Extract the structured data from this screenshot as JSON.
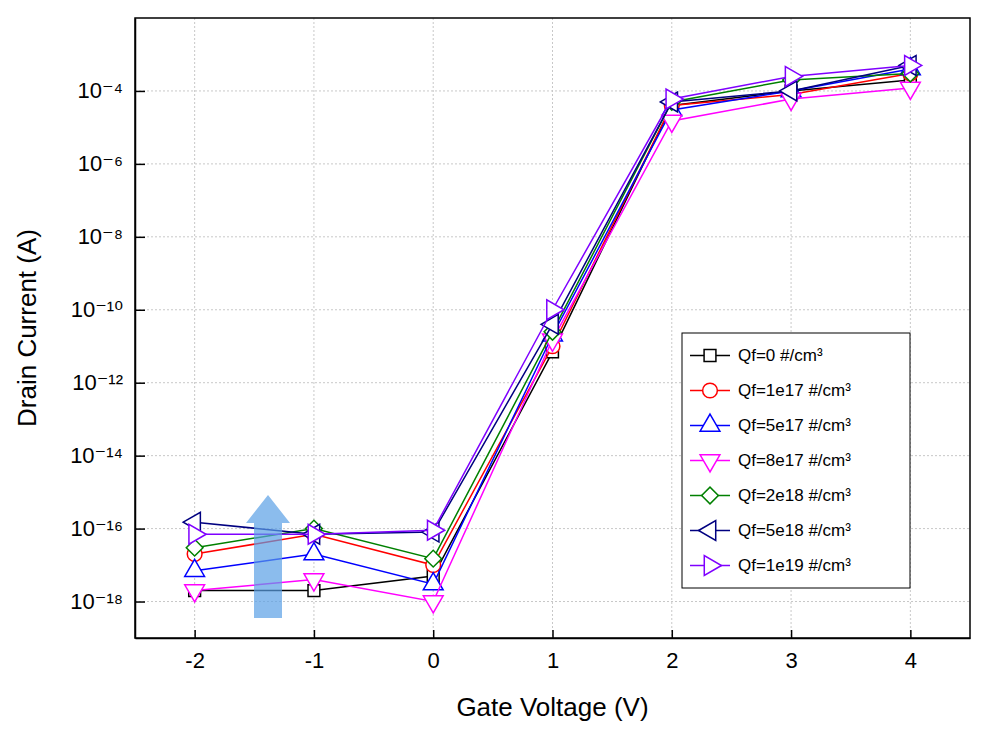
{
  "chart_data": {
    "type": "line",
    "x_label": "Gate Voltage (V)",
    "y_label": "Drain Current (A)",
    "log": "y",
    "grid": true,
    "legend": "lower right",
    "x": [
      -2,
      -1,
      0,
      1,
      2,
      3,
      4
    ],
    "xlim": [
      -2.5,
      4.5
    ],
    "xticks": [
      -2,
      -1,
      0,
      1,
      2,
      3,
      4
    ],
    "ylim": [
      1e-19,
      0.01
    ],
    "yticks": [
      {
        "value": 1e-18,
        "label": "10⁻¹⁸"
      },
      {
        "value": 1e-16,
        "label": "10⁻¹⁶"
      },
      {
        "value": 1e-14,
        "label": "10⁻¹⁴"
      },
      {
        "value": 1e-12,
        "label": "10⁻¹²"
      },
      {
        "value": 1e-10,
        "label": "10⁻¹⁰"
      },
      {
        "value": 1e-08,
        "label": "10⁻⁸"
      },
      {
        "value": 1e-06,
        "label": "10⁻⁶"
      },
      {
        "value": 0.0001,
        "label": "10⁻⁴"
      }
    ],
    "series": [
      {
        "name": "Qf=0 #/cm³",
        "color": "#000000",
        "marker": "square",
        "values": [
          2e-18,
          2e-18,
          5e-18,
          7e-12,
          4e-05,
          0.0001,
          0.0002
        ]
      },
      {
        "name": "Qf=1e17 #/cm³",
        "color": "#ff0000",
        "marker": "circle",
        "values": [
          2e-17,
          7e-17,
          1e-17,
          1e-11,
          4e-05,
          8e-05,
          0.0003
        ]
      },
      {
        "name": "Qf=5e17 #/cm³",
        "color": "#0000ff",
        "marker": "triangle-up",
        "values": [
          7e-18,
          2e-17,
          3e-18,
          2e-11,
          3e-05,
          0.0001,
          0.0004
        ]
      },
      {
        "name": "Qf=8e17 #/cm³",
        "color": "#ff00ff",
        "marker": "triangle-down",
        "values": [
          2e-18,
          4e-18,
          1e-18,
          1.5e-11,
          1.5e-05,
          6e-05,
          0.00012
        ]
      },
      {
        "name": "Qf=2e18 #/cm³",
        "color": "#008000",
        "marker": "diamond",
        "values": [
          3e-17,
          1e-16,
          1.5e-17,
          2.5e-11,
          5e-05,
          0.0002,
          0.0003
        ]
      },
      {
        "name": "Qf=5e18 #/cm³",
        "color": "#000080",
        "marker": "triangle-left",
        "values": [
          1.5e-16,
          7e-17,
          8e-17,
          4e-11,
          5e-05,
          0.0001,
          0.0005
        ]
      },
      {
        "name": "Qf=1e19 #/cm³",
        "color": "#7f00ff",
        "marker": "triangle-right",
        "values": [
          7e-17,
          7e-17,
          9e-17,
          1e-10,
          6e-05,
          0.00025,
          0.0005
        ]
      }
    ]
  }
}
